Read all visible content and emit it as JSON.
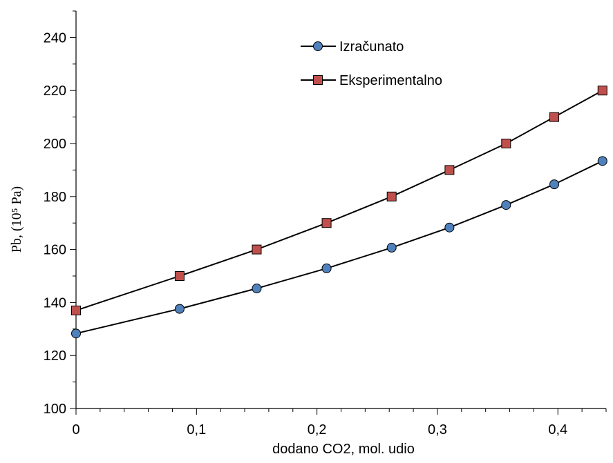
{
  "chart_data": {
    "type": "line",
    "xlabel": "dodano CO2, mol. udio",
    "ylabel": "Pb, (10⁵ Pa)",
    "xlim": [
      0,
      0.44
    ],
    "ylim": [
      100,
      250
    ],
    "x_tick_labels": [
      "0",
      "0,1",
      "0,2",
      "0,3",
      "0,4"
    ],
    "x_tick_values": [
      0,
      0.1,
      0.2,
      0.3,
      0.4
    ],
    "y_tick_labels": [
      "100",
      "120",
      "140",
      "160",
      "180",
      "200",
      "220",
      "240"
    ],
    "y_tick_values": [
      100,
      120,
      140,
      160,
      180,
      200,
      220,
      240
    ],
    "grid": false,
    "legend_position": "top-center",
    "series": [
      {
        "name": "Izračunato",
        "marker": "circle",
        "marker_color": "#4f81bd",
        "line_color": "#000000",
        "x": [
          0,
          0.086,
          0.15,
          0.208,
          0.262,
          0.31,
          0.357,
          0.397,
          0.437
        ],
        "y": [
          128.3,
          137.6,
          145.3,
          152.9,
          160.7,
          168.3,
          176.8,
          184.6,
          193.4
        ]
      },
      {
        "name": "Eksperimentalno",
        "marker": "square",
        "marker_color": "#c0504d",
        "line_color": "#000000",
        "x": [
          0,
          0.086,
          0.15,
          0.208,
          0.262,
          0.31,
          0.357,
          0.397,
          0.437
        ],
        "y": [
          137,
          150,
          160,
          170,
          180,
          190,
          200,
          210,
          220
        ]
      }
    ]
  }
}
